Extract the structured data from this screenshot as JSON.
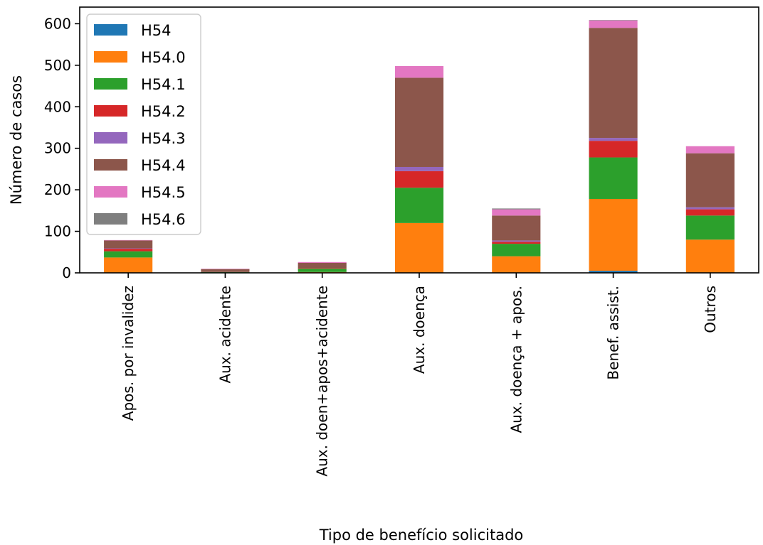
{
  "chart_data": {
    "type": "bar",
    "stacked": true,
    "categories": [
      "Apos. por invalidez",
      "Aux. acidente",
      "Aux. doen+apos+acidente",
      "Aux. doença",
      "Aux. doença + apos.",
      "Benef. assist.",
      "Outros"
    ],
    "series": [
      {
        "name": "H54",
        "color": "#1f77b4",
        "values": [
          0,
          0,
          0,
          0,
          0,
          5,
          0
        ]
      },
      {
        "name": "H54.0",
        "color": "#ff7f0e",
        "values": [
          37,
          1,
          2,
          120,
          40,
          173,
          80
        ]
      },
      {
        "name": "H54.1",
        "color": "#2ca02c",
        "values": [
          15,
          1,
          8,
          85,
          30,
          100,
          58
        ]
      },
      {
        "name": "H54.2",
        "color": "#d62728",
        "values": [
          6,
          0,
          1,
          40,
          5,
          40,
          15
        ]
      },
      {
        "name": "H54.3",
        "color": "#9467bd",
        "values": [
          1,
          0,
          0,
          10,
          3,
          7,
          5
        ]
      },
      {
        "name": "H54.4",
        "color": "#8c564b",
        "values": [
          19,
          7,
          13,
          215,
          60,
          265,
          130
        ]
      },
      {
        "name": "H54.5",
        "color": "#e377c2",
        "values": [
          1,
          1,
          2,
          28,
          15,
          18,
          17
        ]
      },
      {
        "name": "H54.6",
        "color": "#7f7f7f",
        "values": [
          0,
          0,
          0,
          0,
          2,
          1,
          0
        ]
      }
    ],
    "title": "",
    "xlabel": "Tipo de benefício solicitado",
    "ylabel": "Número de casos",
    "ylim": [
      0,
      640
    ],
    "yticks": [
      0,
      100,
      200,
      300,
      400,
      500,
      600
    ],
    "grid": false,
    "legend_position": "upper-left"
  }
}
